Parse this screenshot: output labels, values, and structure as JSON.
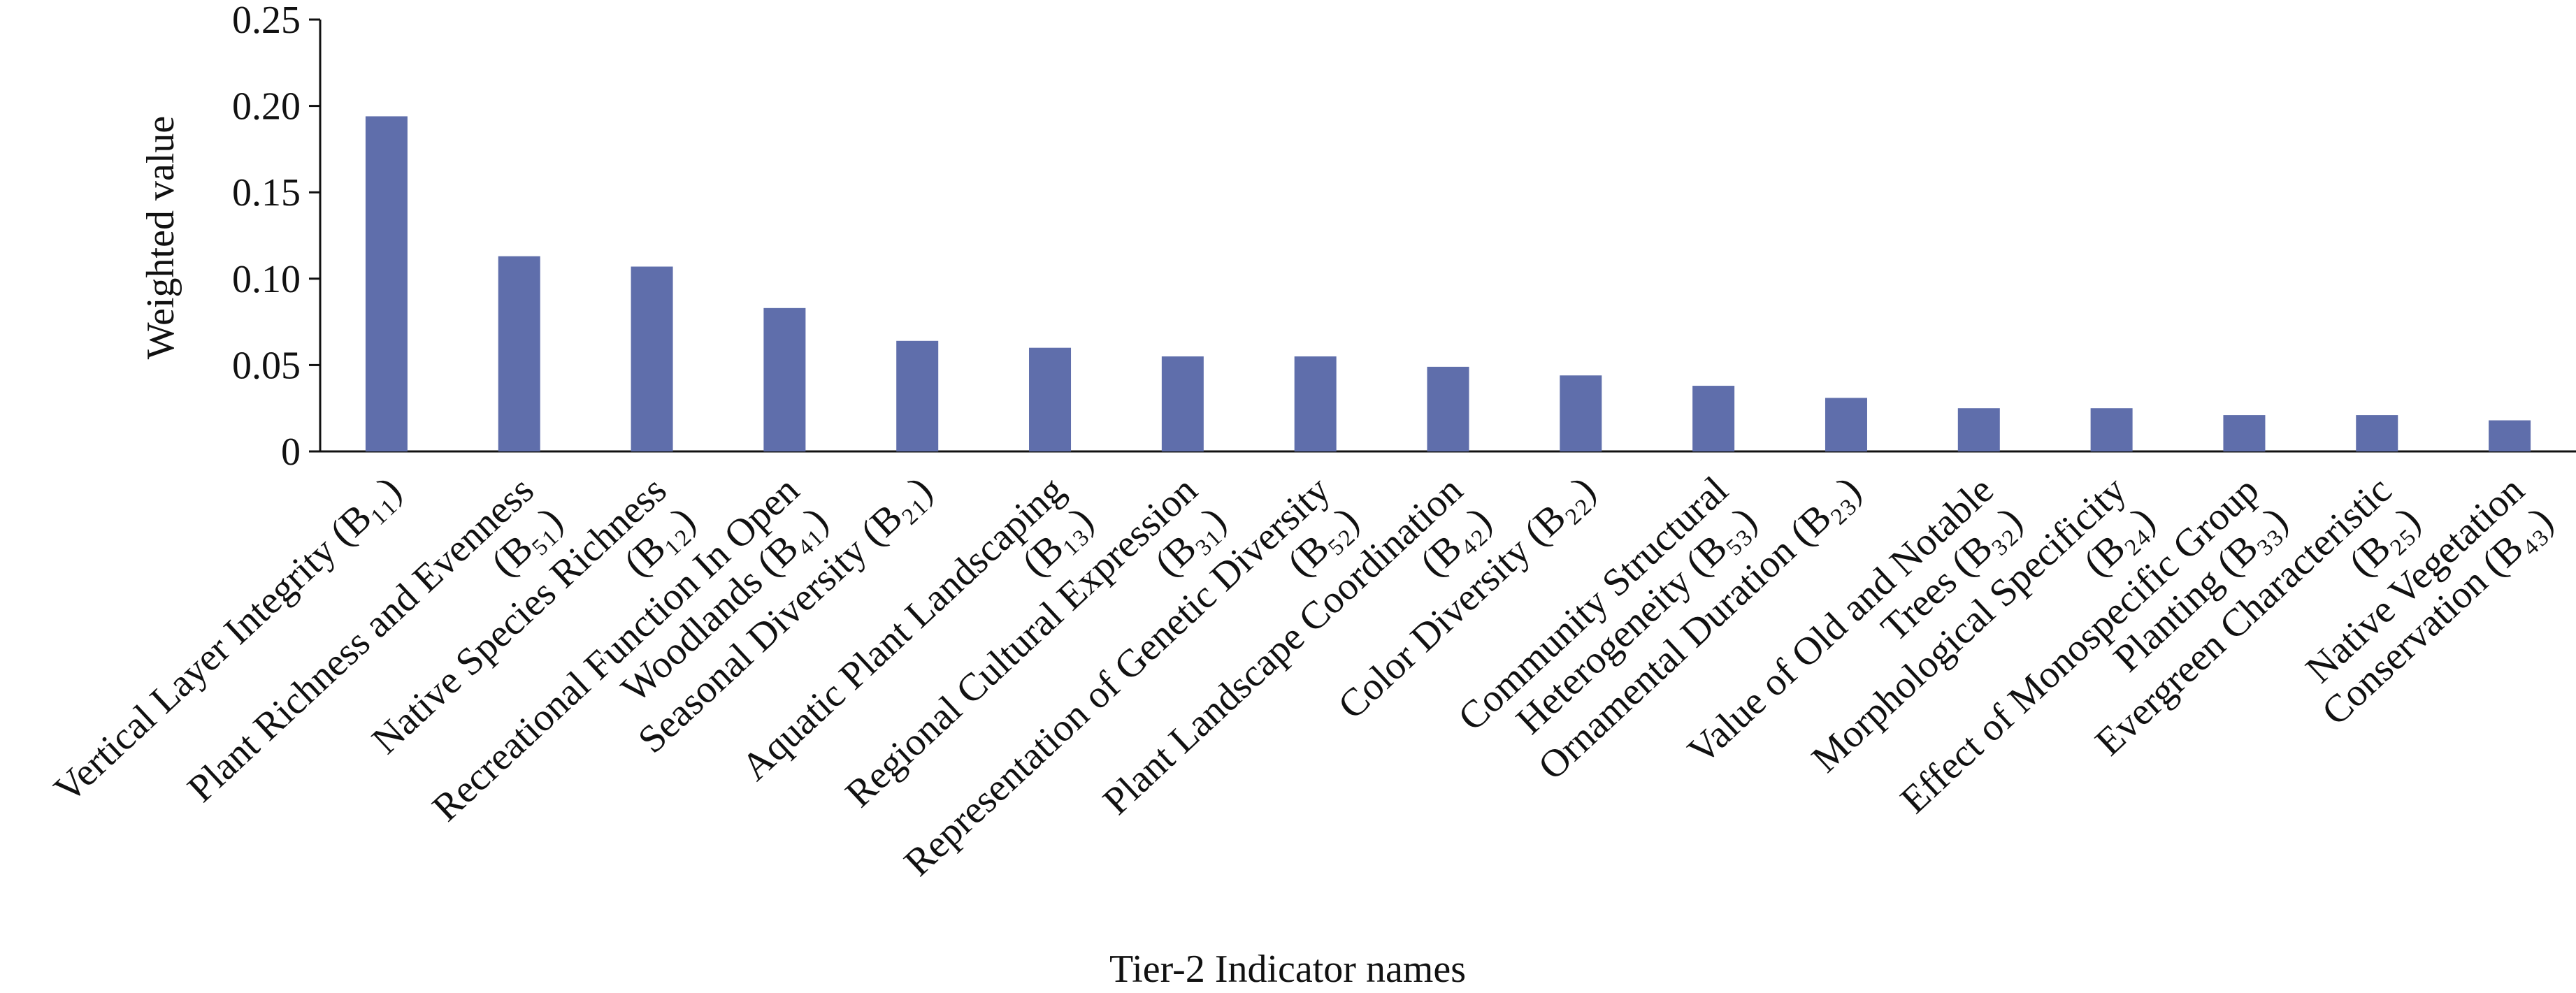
{
  "chart_data": {
    "type": "bar",
    "x_label": "Tier-2 Indicator names",
    "y_label": "Weighted value",
    "categories": [
      [
        "Vertical Layer Integrity (B₁₁)"
      ],
      [
        "Plant Richness and Evenness",
        "(B₅₁)"
      ],
      [
        "Native Species Richness",
        "(B₁₂)"
      ],
      [
        "Recreational Function In Open",
        "Woodlands (B₄₁)"
      ],
      [
        "Seasonal Diversity (B₂₁)"
      ],
      [
        "Aquatic Plant Landscaping",
        "(B₁₃)"
      ],
      [
        "Regional Cultural Expression",
        "(B₃₁)"
      ],
      [
        "Representation of Genetic Diversity",
        "(B₅₂)"
      ],
      [
        "Plant Landscape Coordination",
        "(B₄₂)"
      ],
      [
        "Color Diversity (B₂₂)"
      ],
      [
        "Community Structural",
        "Heterogeneity (B₅₃)"
      ],
      [
        "Ornamental Duration (B₂₃)"
      ],
      [
        "Value of Old and Notable",
        "Trees (B₃₂)"
      ],
      [
        "Morphological Specificity",
        "(B₂₄)"
      ],
      [
        "Effect of Monospecific Group",
        "Planting (B₃₃)"
      ],
      [
        "Evergreen Characteristic",
        "(B₂₅)"
      ],
      [
        "Native Vegetation",
        "Conservation (B₄₃)"
      ]
    ],
    "values": [
      0.194,
      0.113,
      0.107,
      0.083,
      0.064,
      0.06,
      0.055,
      0.055,
      0.049,
      0.044,
      0.038,
      0.031,
      0.025,
      0.025,
      0.021,
      0.021,
      0.018
    ],
    "color": "#5f6eab",
    "ylim": [
      0,
      0.25
    ],
    "yticks": [
      0,
      0.05,
      {
        "value": 0.1,
        "label": "0.10"
      },
      0.15,
      {
        "value": 0.2,
        "label": "0.20"
      },
      0.25
    ],
    "grid": false
  }
}
